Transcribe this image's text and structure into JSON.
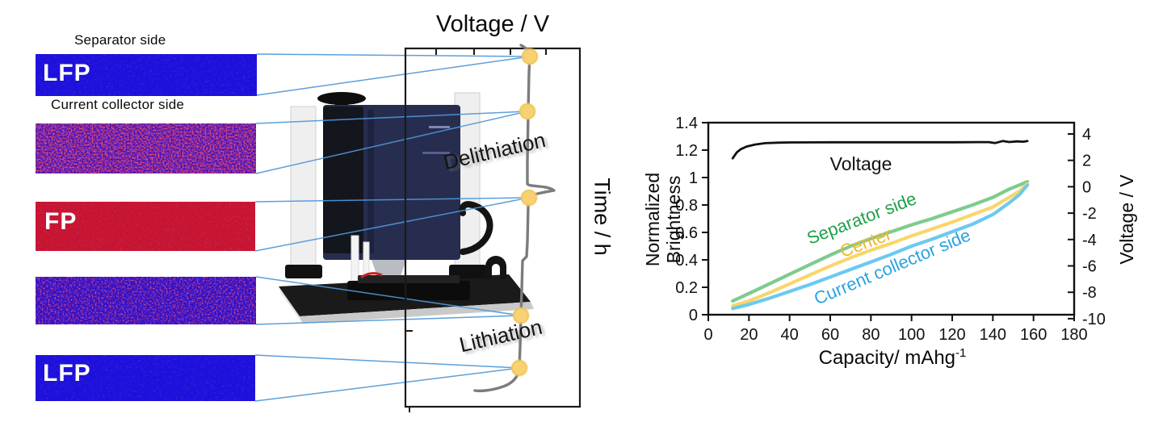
{
  "figure": {
    "left_panel": {
      "separator_side_label": "Separator side",
      "current_collector_label": "Current collector side",
      "strips": [
        {
          "label": "LFP",
          "texture": "blue-with-sparse-red-speckles",
          "base_color": "#1c10dd",
          "speckle_color": "#e01a28"
        },
        {
          "label": "",
          "texture": "red-blue-mottled",
          "base_color": "#3912c5",
          "speckle_color": "#d81425"
        },
        {
          "label": "FP",
          "texture": "red-with-sparse-blue-speckles",
          "base_color": "#c81330",
          "speckle_color": "#4326c0"
        },
        {
          "label": "",
          "texture": "blue-red-mottled",
          "base_color": "#2a10cc",
          "speckle_color": "#cc1438"
        },
        {
          "label": "LFP",
          "texture": "blue-with-sparse-red-speckles",
          "base_color": "#1c10dd",
          "speckle_color": "#e01a28"
        }
      ]
    },
    "center_panel": {
      "title": "Voltage / V",
      "time_axis_label": "Time / h",
      "delithiation_label": "Delithiation",
      "lithiation_label": "Lithiation",
      "marker_color": "#f8d173",
      "curve_color": "#7c7c7c",
      "connector_color": "#4f97d9",
      "equipment": "laser-microscope-photo"
    }
  },
  "chart_data": {
    "type": "line",
    "title": "",
    "xlabel_base": "Capacity/ mAhg",
    "xlabel_sup": "-1",
    "ylabel_left_line1": "Normalized",
    "ylabel_left_line2": "Brightness",
    "ylabel_right": "Voltage / V",
    "xlim": [
      0,
      180
    ],
    "ylim_left": [
      0,
      1.4
    ],
    "ylim_right": [
      -10,
      4
    ],
    "grid": false,
    "legend_position": "inline-curve-labels",
    "x_ticks": [
      0,
      20,
      40,
      60,
      80,
      100,
      120,
      140,
      160,
      180
    ],
    "y_left_ticks": [
      "0",
      "0.2",
      "0.4",
      "0.6",
      "0.8",
      "1",
      "1.2",
      "1.4"
    ],
    "y_right_ticks": [
      "4",
      "2",
      "0",
      "-2",
      "-4",
      "-6",
      "-8",
      "-10"
    ],
    "series": [
      {
        "name": "Voltage",
        "axis": "right",
        "color": "#111111",
        "label_color": "#111111",
        "x": [
          12,
          14,
          16,
          19,
          23,
          28,
          34,
          40,
          60,
          80,
          100,
          120,
          133,
          138,
          141,
          145,
          148,
          152,
          155,
          157
        ],
        "y": [
          2.15,
          2.6,
          2.85,
          3.05,
          3.2,
          3.3,
          3.34,
          3.36,
          3.37,
          3.37,
          3.37,
          3.37,
          3.38,
          3.38,
          3.31,
          3.47,
          3.39,
          3.44,
          3.41,
          3.46
        ]
      },
      {
        "name": "Separator side",
        "axis": "left",
        "color": "#7ecb8e",
        "label_color": "#1fa24a",
        "x": [
          12,
          20,
          30,
          40,
          50,
          60,
          70,
          80,
          90,
          100,
          110,
          120,
          130,
          140,
          148,
          153,
          157
        ],
        "y": [
          0.1,
          0.155,
          0.225,
          0.295,
          0.365,
          0.435,
          0.5,
          0.555,
          0.605,
          0.655,
          0.7,
          0.75,
          0.8,
          0.855,
          0.915,
          0.945,
          0.97
        ]
      },
      {
        "name": "Center",
        "axis": "left",
        "color": "#f9d66b",
        "label_color": "#f0b62e",
        "x": [
          12,
          20,
          30,
          40,
          50,
          60,
          70,
          80,
          90,
          100,
          110,
          120,
          130,
          140,
          148,
          153,
          157
        ],
        "y": [
          0.065,
          0.1,
          0.16,
          0.225,
          0.29,
          0.355,
          0.415,
          0.47,
          0.52,
          0.575,
          0.625,
          0.675,
          0.73,
          0.785,
          0.855,
          0.9,
          0.955
        ]
      },
      {
        "name": "Current collector side",
        "axis": "left",
        "color": "#6cc9ef",
        "label_color": "#2aa3dd",
        "x": [
          12,
          20,
          30,
          40,
          50,
          60,
          70,
          80,
          90,
          100,
          110,
          120,
          130,
          140,
          148,
          153,
          157
        ],
        "y": [
          0.045,
          0.075,
          0.12,
          0.17,
          0.22,
          0.275,
          0.33,
          0.385,
          0.44,
          0.5,
          0.55,
          0.605,
          0.66,
          0.73,
          0.815,
          0.875,
          0.945
        ]
      }
    ]
  }
}
